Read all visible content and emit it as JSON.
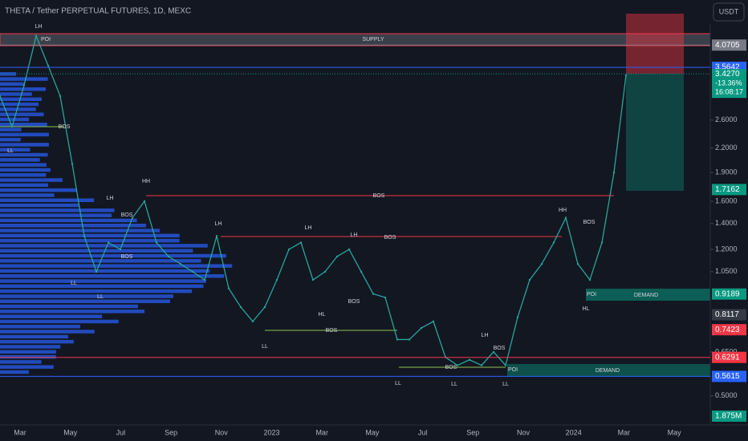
{
  "header": {
    "symbol": "THETA / Tether PERPETUAL FUTURES, 1D, MEXC",
    "currency": "USDT"
  },
  "chart_data": {
    "type": "line",
    "log_scale": true,
    "color": "#26a69a",
    "ylim": [
      0.42,
      5.33
    ],
    "yticks": [
      {
        "value": 2.6,
        "label": "2.6000"
      },
      {
        "value": 2.2,
        "label": "2.2000"
      },
      {
        "value": 1.9,
        "label": "1.9000"
      },
      {
        "value": 1.6,
        "label": "1.6000"
      },
      {
        "value": 1.4,
        "label": "1.4000"
      },
      {
        "value": 1.2,
        "label": "1.2000"
      },
      {
        "value": 1.05,
        "label": "1.0500"
      },
      {
        "value": 0.65,
        "label": "0.6500"
      },
      {
        "value": 0.5,
        "label": "0.5000"
      }
    ],
    "time_labels": [
      "Mar",
      "May",
      "Jul",
      "Sep",
      "Nov",
      "2023",
      "Mar",
      "May",
      "Jul",
      "Sep",
      "Nov",
      "2024",
      "Mar",
      "May"
    ],
    "values": [
      3.0,
      2.5,
      3.2,
      4.3,
      3.6,
      3.0,
      2.0,
      1.3,
      1.05,
      1.25,
      1.2,
      1.45,
      1.6,
      1.25,
      1.15,
      1.1,
      1.05,
      1.0,
      1.3,
      0.95,
      0.85,
      0.78,
      0.85,
      1.0,
      1.2,
      1.25,
      1.0,
      1.05,
      1.15,
      1.2,
      1.05,
      0.92,
      0.9,
      0.7,
      0.7,
      0.75,
      0.78,
      0.63,
      0.6,
      0.62,
      0.6,
      0.65,
      0.6,
      0.8,
      1.0,
      1.1,
      1.25,
      1.45,
      1.1,
      1.0,
      1.25,
      1.9,
      3.4
    ],
    "price_levels": [
      {
        "value": 4.0705,
        "color": "#787b86",
        "line": true
      },
      {
        "value": 3.5642,
        "color": "#2962ff",
        "line": true
      },
      {
        "value": 1.7162,
        "color": "#089981",
        "line": false
      },
      {
        "value": 0.9189,
        "color": "#089981",
        "line": false
      },
      {
        "value": 0.8117,
        "color": "#363a45",
        "line": false
      },
      {
        "value": 0.7423,
        "color": "#f23645",
        "line": false
      },
      {
        "value": 0.6291,
        "color": "#f23645",
        "line": true
      },
      {
        "value": 0.5615,
        "color": "#2962ff",
        "line": true
      }
    ],
    "last_price": {
      "value": 3.427,
      "label": "3.4270",
      "change": "-13.36%",
      "countdown": "16:08:17",
      "color": "#089981"
    },
    "volume_label": {
      "value": 1875000,
      "label": "1.875M"
    },
    "annotations": [
      "LH",
      "POI",
      "SUPPLY",
      "LL",
      "BOS",
      "LL",
      "LL",
      "BOS",
      "BOS",
      "HH",
      "LH",
      "LH",
      "LH",
      "LH",
      "BOS",
      "BOS",
      "HL",
      "BOS",
      "LL",
      "BOS",
      "LL",
      "LL",
      "LL",
      "LH",
      "BOS",
      "BOS",
      "POI",
      "DEMAND",
      "HH",
      "BOS",
      "POI",
      "DEMAND",
      "HL"
    ]
  }
}
